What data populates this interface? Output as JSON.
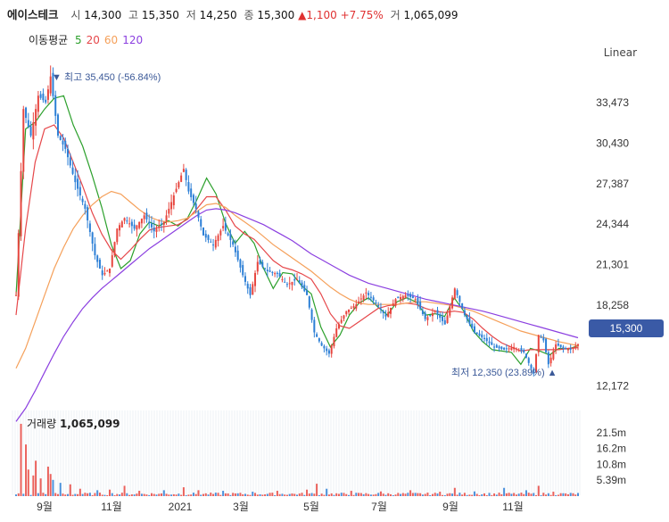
{
  "header": {
    "name": "에이스테크",
    "open_label": "시",
    "open": "14,300",
    "high_label": "고",
    "high": "15,350",
    "low_label": "저",
    "low": "14,250",
    "close_label": "종",
    "close": "15,300",
    "change": "▲1,100",
    "change_pct": "+7.75%",
    "volume_label": "거",
    "volume": "1,065,099"
  },
  "ma_legend": {
    "title": "이동평균",
    "periods": [
      {
        "label": "5",
        "color": "#2ca02c"
      },
      {
        "label": "20",
        "color": "#e6474a"
      },
      {
        "label": "60",
        "color": "#f5a05a"
      },
      {
        "label": "120",
        "color": "#8b3fe0"
      }
    ]
  },
  "scale_mode": "Linear",
  "chart_data": {
    "type": "candlestick",
    "price_axis": {
      "ticks": [
        "33,473",
        "30,430",
        "27,387",
        "24,344",
        "21,301",
        "18,258",
        "12,172"
      ],
      "ylim": [
        11000,
        36500
      ]
    },
    "x_ticks": [
      "9월",
      "11월",
      "2021",
      "3월",
      "5월",
      "7월",
      "9월",
      "11월"
    ],
    "last_price": "15,300",
    "high_note": "▼ 최고 35,450 (-56.84%)",
    "low_note": "최저 12,350 (23.89%) ▲",
    "price_path": [
      [
        0,
        19000
      ],
      [
        3,
        33000
      ],
      [
        6,
        31000
      ],
      [
        9,
        34000
      ],
      [
        12,
        33500
      ],
      [
        14,
        35450
      ],
      [
        17,
        31000
      ],
      [
        20,
        30000
      ],
      [
        24,
        27500
      ],
      [
        28,
        25500
      ],
      [
        32,
        22000
      ],
      [
        35,
        20500
      ],
      [
        38,
        21000
      ],
      [
        41,
        24000
      ],
      [
        44,
        24800
      ],
      [
        48,
        24000
      ],
      [
        52,
        25000
      ],
      [
        56,
        23800
      ],
      [
        60,
        24500
      ],
      [
        64,
        26500
      ],
      [
        68,
        28500
      ],
      [
        70,
        26800
      ],
      [
        73,
        25500
      ],
      [
        76,
        23500
      ],
      [
        80,
        22800
      ],
      [
        84,
        24200
      ],
      [
        88,
        22800
      ],
      [
        92,
        20500
      ],
      [
        95,
        19000
      ],
      [
        98,
        21500
      ],
      [
        102,
        20800
      ],
      [
        106,
        20600
      ],
      [
        110,
        19800
      ],
      [
        114,
        20200
      ],
      [
        118,
        19000
      ],
      [
        121,
        16200
      ],
      [
        124,
        15200
      ],
      [
        127,
        14600
      ],
      [
        130,
        16500
      ],
      [
        134,
        17800
      ],
      [
        138,
        18300
      ],
      [
        142,
        19200
      ],
      [
        146,
        18400
      ],
      [
        150,
        17400
      ],
      [
        154,
        18700
      ],
      [
        158,
        19000
      ],
      [
        162,
        18700
      ],
      [
        166,
        17200
      ],
      [
        170,
        17800
      ],
      [
        174,
        16800
      ],
      [
        178,
        19500
      ],
      [
        182,
        17500
      ],
      [
        186,
        16200
      ],
      [
        190,
        15700
      ],
      [
        194,
        15100
      ],
      [
        198,
        14900
      ],
      [
        202,
        15100
      ],
      [
        206,
        14700
      ],
      [
        210,
        13100
      ],
      [
        212,
        16000
      ],
      [
        214,
        15600
      ],
      [
        216,
        13800
      ],
      [
        219,
        15300
      ],
      [
        222,
        15000
      ],
      [
        225,
        14900
      ],
      [
        228,
        15300
      ]
    ],
    "moving_averages": [
      {
        "period": "5",
        "color": "#2ca02c",
        "values": [
          19000,
          31500,
          32000,
          33000,
          33800,
          34000,
          31800,
          30200,
          28000,
          25600,
          22800,
          21000,
          21600,
          23600,
          24500,
          24200,
          24600,
          24200,
          24800,
          26200,
          27800,
          26600,
          24400,
          22900,
          23800,
          22900,
          21000,
          19500,
          20700,
          20600,
          19700,
          19100,
          16600,
          15100,
          16000,
          17500,
          18400,
          18800,
          18100,
          17500,
          18500,
          18800,
          18500,
          17500,
          17600,
          17400,
          18800,
          17800,
          16300,
          15500,
          14900,
          14800,
          14700,
          13800,
          15000,
          14800,
          14500,
          15000,
          14950,
          15200
        ]
      },
      {
        "period": "20",
        "color": "#e6474a",
        "values": [
          17500,
          24000,
          29000,
          31500,
          31800,
          30800,
          29000,
          27200,
          25200,
          23600,
          22400,
          21700,
          22400,
          23200,
          23900,
          24100,
          24200,
          24300,
          24700,
          25500,
          26400,
          26400,
          25400,
          24200,
          23600,
          23200,
          22400,
          21600,
          21100,
          20900,
          20600,
          20200,
          19100,
          17600,
          16700,
          16500,
          17000,
          17500,
          18000,
          18200,
          18300,
          18400,
          18300,
          18000,
          17800,
          17700,
          17800,
          17700,
          17200,
          16500,
          15900,
          15400,
          15100,
          14800,
          14900,
          14900,
          14900,
          14900,
          15000,
          15050
        ]
      },
      {
        "period": "60",
        "color": "#f5a05a",
        "values": [
          13500,
          15000,
          17000,
          19000,
          21000,
          22600,
          24000,
          25000,
          25800,
          26400,
          26800,
          26600,
          26000,
          25400,
          24900,
          24600,
          24500,
          24600,
          24800,
          25300,
          25800,
          25900,
          25600,
          25000,
          24500,
          24000,
          23400,
          22800,
          22300,
          21800,
          21300,
          20800,
          20200,
          19600,
          19100,
          18700,
          18400,
          18300,
          18300,
          18300,
          18300,
          18400,
          18500,
          18500,
          18400,
          18300,
          18200,
          18000,
          17800,
          17500,
          17200,
          16900,
          16600,
          16300,
          16100,
          15900,
          15700,
          15500,
          15350,
          15200
        ]
      },
      {
        "period": "120",
        "color": "#8b3fe0",
        "values": [
          9500,
          10500,
          11800,
          13200,
          14600,
          15900,
          17000,
          18000,
          18800,
          19500,
          20100,
          20700,
          21300,
          21900,
          22500,
          23000,
          23500,
          24000,
          24500,
          25000,
          25400,
          25500,
          25400,
          25200,
          24900,
          24600,
          24300,
          23900,
          23500,
          23100,
          22600,
          22100,
          21700,
          21300,
          20900,
          20500,
          20200,
          19900,
          19700,
          19500,
          19300,
          19100,
          18900,
          18700,
          18550,
          18400,
          18250,
          18100,
          17950,
          17800,
          17600,
          17400,
          17200,
          17000,
          16800,
          16600,
          16400,
          16200,
          16000,
          15800
        ]
      }
    ],
    "volume_panel": {
      "title": "거래량",
      "value": "1,065,099",
      "ticks": [
        "21.5m",
        "16.2m",
        "10.8m",
        "5.39m"
      ],
      "ylim": [
        0,
        26000000
      ],
      "spikes": [
        [
          2,
          24500000
        ],
        [
          4,
          17500000
        ],
        [
          5,
          9000000
        ],
        [
          7,
          7000000
        ],
        [
          8,
          12000000
        ],
        [
          10,
          6000000
        ],
        [
          13,
          10000000
        ],
        [
          14,
          7500000
        ],
        [
          15,
          5500000
        ],
        [
          18,
          4500000
        ],
        [
          22,
          4000000
        ],
        [
          26,
          2500000
        ],
        [
          33,
          2000000
        ],
        [
          38,
          2200000
        ],
        [
          44,
          3500000
        ],
        [
          50,
          1800000
        ],
        [
          60,
          2000000
        ],
        [
          68,
          3000000
        ],
        [
          74,
          2000000
        ],
        [
          84,
          1800000
        ],
        [
          96,
          1500000
        ],
        [
          106,
          1800000
        ],
        [
          118,
          2200000
        ],
        [
          122,
          4200000
        ],
        [
          126,
          2500000
        ],
        [
          136,
          1800000
        ],
        [
          148,
          1600000
        ],
        [
          160,
          2000000
        ],
        [
          172,
          1500000
        ],
        [
          178,
          2800000
        ],
        [
          186,
          1600000
        ],
        [
          198,
          2800000
        ],
        [
          207,
          2000000
        ],
        [
          212,
          3500000
        ],
        [
          218,
          1500000
        ],
        [
          228,
          1065099
        ]
      ]
    }
  }
}
